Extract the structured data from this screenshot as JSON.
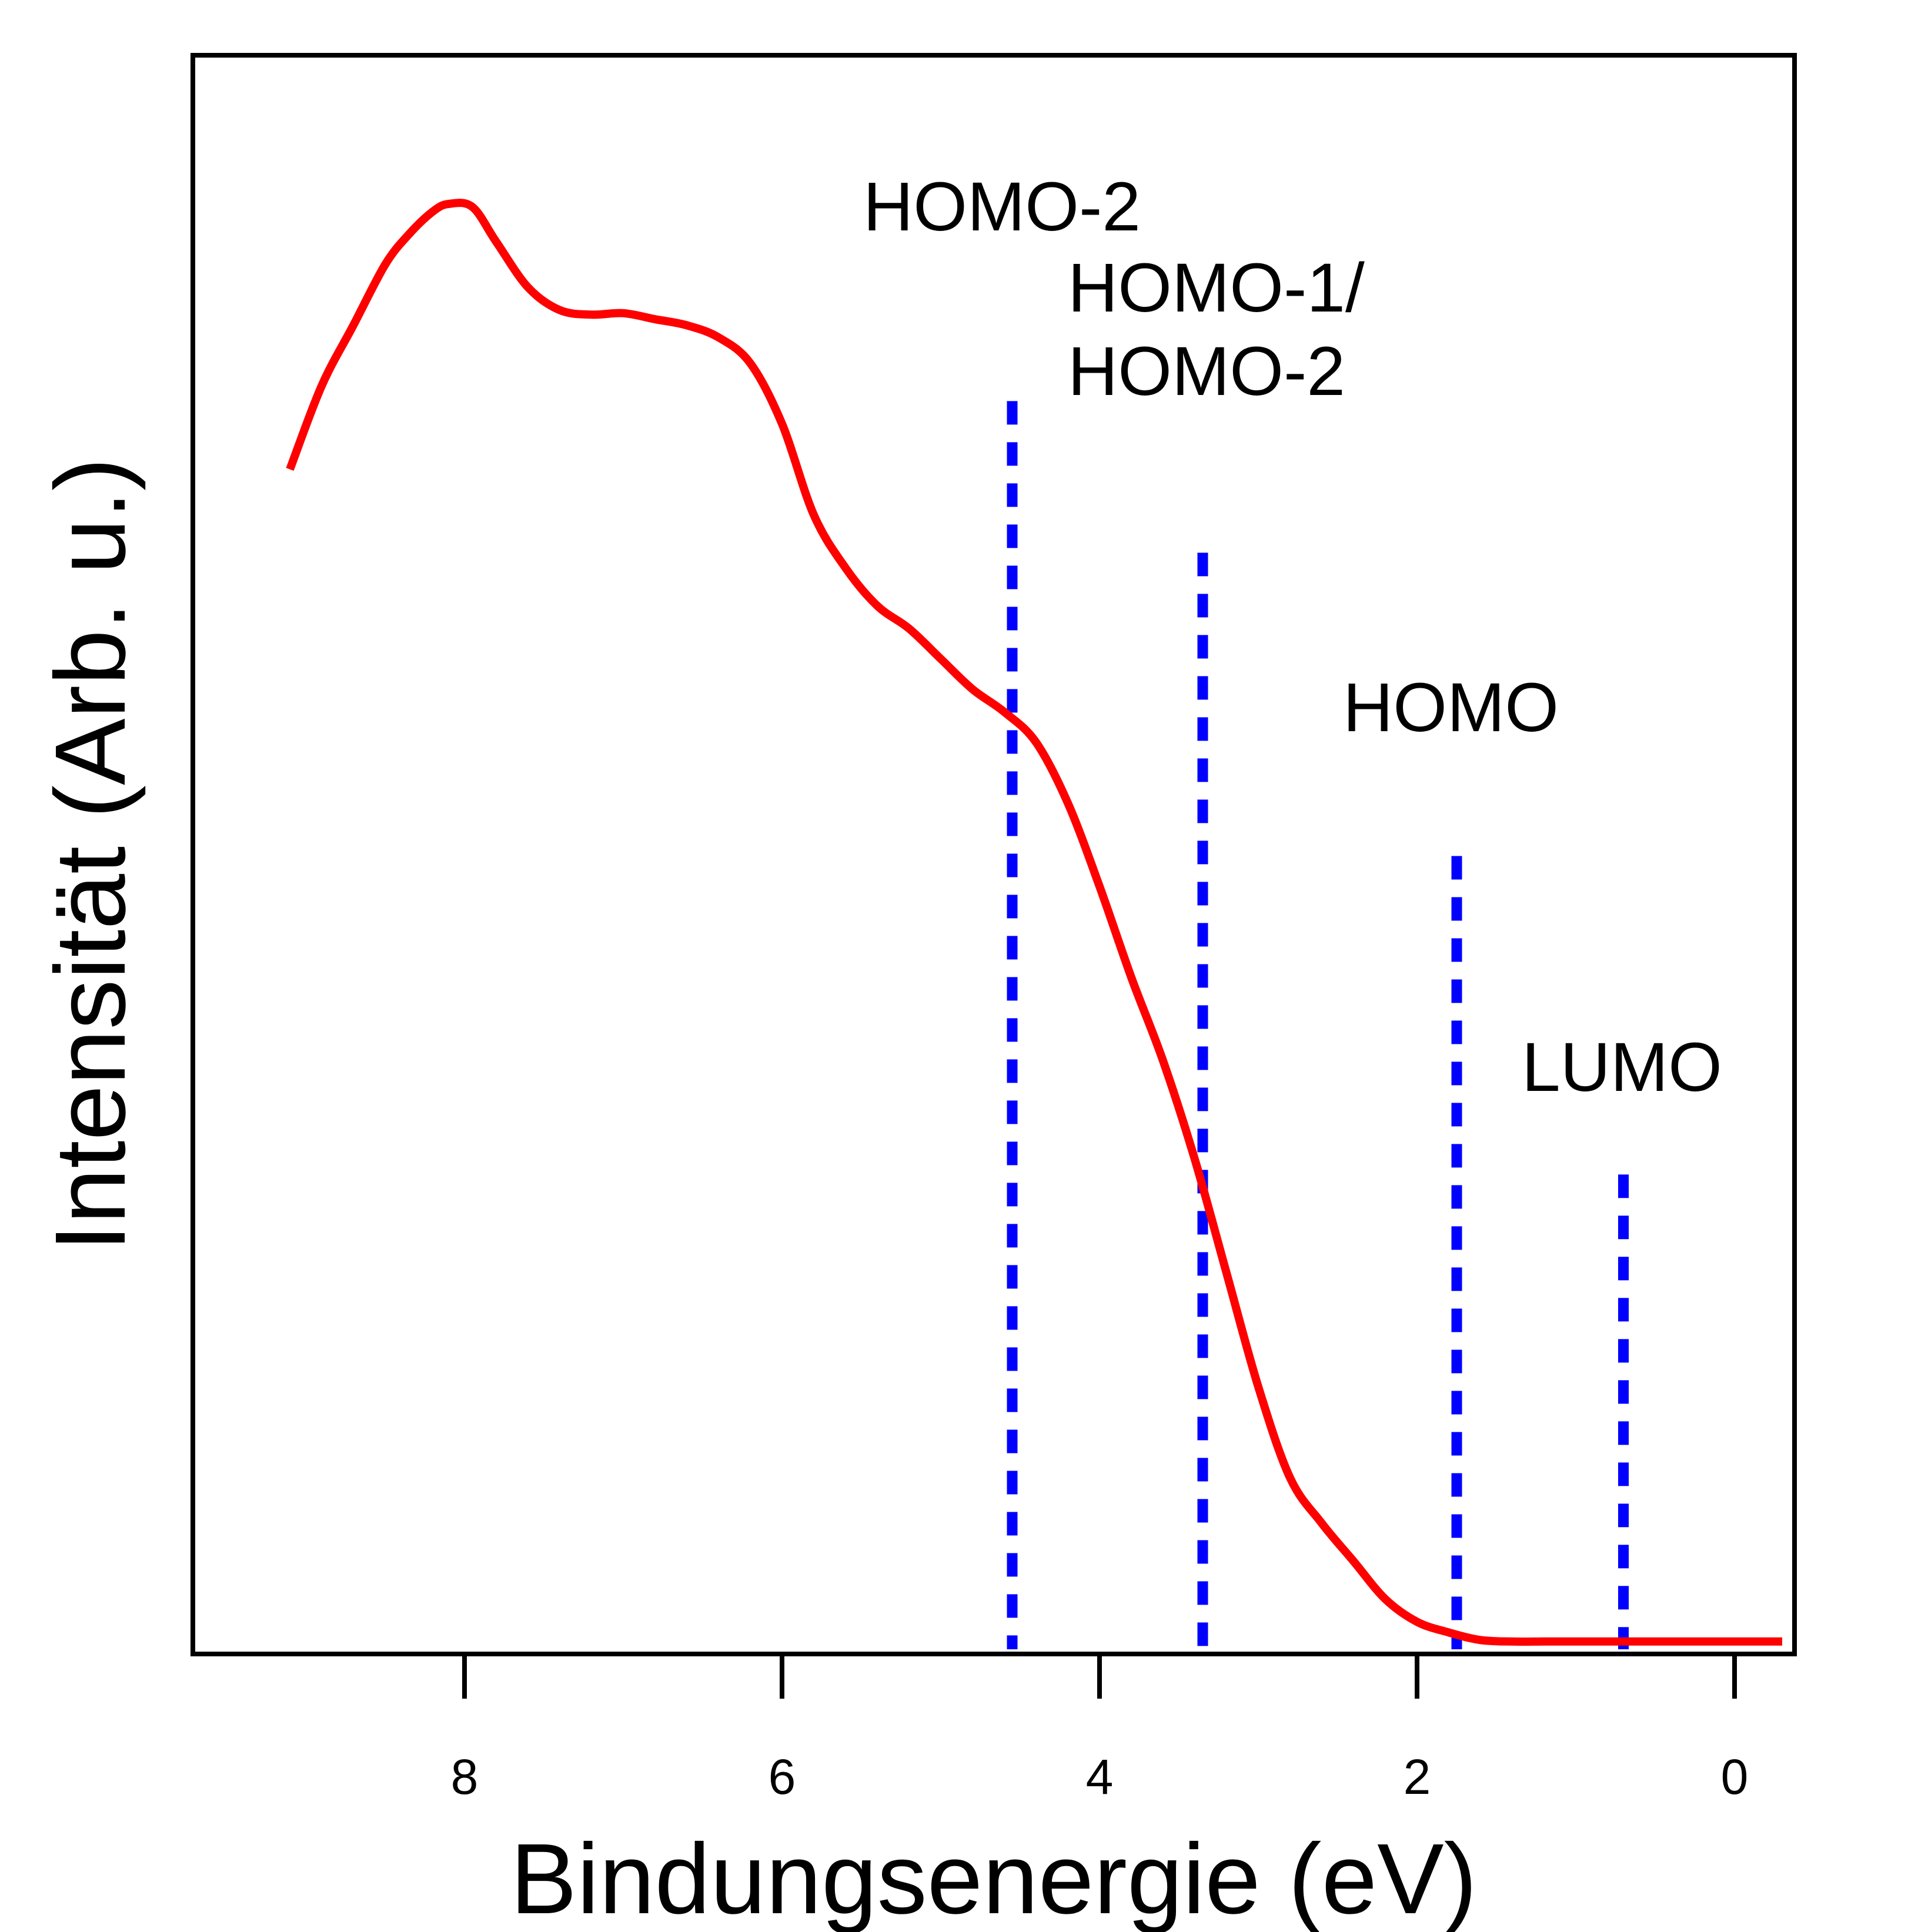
{
  "chart_data": {
    "type": "line",
    "title": "",
    "xlabel": "Bindungsenergie (eV)",
    "ylabel": "Intensität (Arb. u.)",
    "x_reversed": true,
    "xlim": [
      9.5,
      -0.5
    ],
    "ylim": [
      0,
      100
    ],
    "x_ticks": [
      8,
      6,
      4,
      2,
      0
    ],
    "x_tick_labels": [
      "8",
      "6",
      "4",
      "2",
      "0"
    ],
    "y_ticks_shown": false,
    "grid": false,
    "legend": "none",
    "series": [
      {
        "color": "#ff0000",
        "x": [
          9.1,
          8.9,
          8.7,
          8.5,
          8.35,
          8.2,
          8.1,
          7.95,
          7.8,
          7.6,
          7.4,
          7.2,
          7.0,
          6.8,
          6.6,
          6.4,
          6.2,
          6.0,
          5.8,
          5.6,
          5.4,
          5.2,
          5.0,
          4.8,
          4.6,
          4.4,
          4.2,
          4.0,
          3.8,
          3.6,
          3.4,
          3.2,
          3.0,
          2.8,
          2.6,
          2.4,
          2.2,
          2.0,
          1.8,
          1.6,
          1.4,
          1.2,
          1.0,
          0.8,
          0.6,
          0.4,
          0.3,
          0.2,
          0.1,
          0.0,
          -0.3
        ],
        "y": [
          77.5,
          83.0,
          87.0,
          91.0,
          93.0,
          94.5,
          95.0,
          94.8,
          92.5,
          89.5,
          88.0,
          87.7,
          87.8,
          87.4,
          87.0,
          86.2,
          84.5,
          80.5,
          74.5,
          71.0,
          68.5,
          67.0,
          65.0,
          63.0,
          61.5,
          59.5,
          55.5,
          50.0,
          44.0,
          38.5,
          32.0,
          24.5,
          17.0,
          11.0,
          8.0,
          5.5,
          3.0,
          1.5,
          0.8,
          0.3,
          0.2,
          0.2,
          0.2,
          0.2,
          0.2,
          0.2,
          0.2,
          0.2,
          0.2,
          0.2,
          0.2
        ]
      }
    ],
    "reference_lines": [
      {
        "x": 4.55,
        "color": "#0000ff",
        "style": "dashed",
        "top": 82,
        "label_lines": [
          "HOMO-2"
        ]
      },
      {
        "x": 3.35,
        "color": "#0000ff",
        "style": "dashed",
        "top": 72,
        "label_lines": [
          "HOMO-1/",
          "HOMO-2"
        ]
      },
      {
        "x": 1.75,
        "color": "#0000ff",
        "style": "dashed",
        "top": 52,
        "label_lines": [
          "HOMO"
        ]
      },
      {
        "x": 0.7,
        "color": "#0000ff",
        "style": "dashed",
        "top": 31,
        "label_lines": [
          "LUMO"
        ]
      }
    ]
  }
}
